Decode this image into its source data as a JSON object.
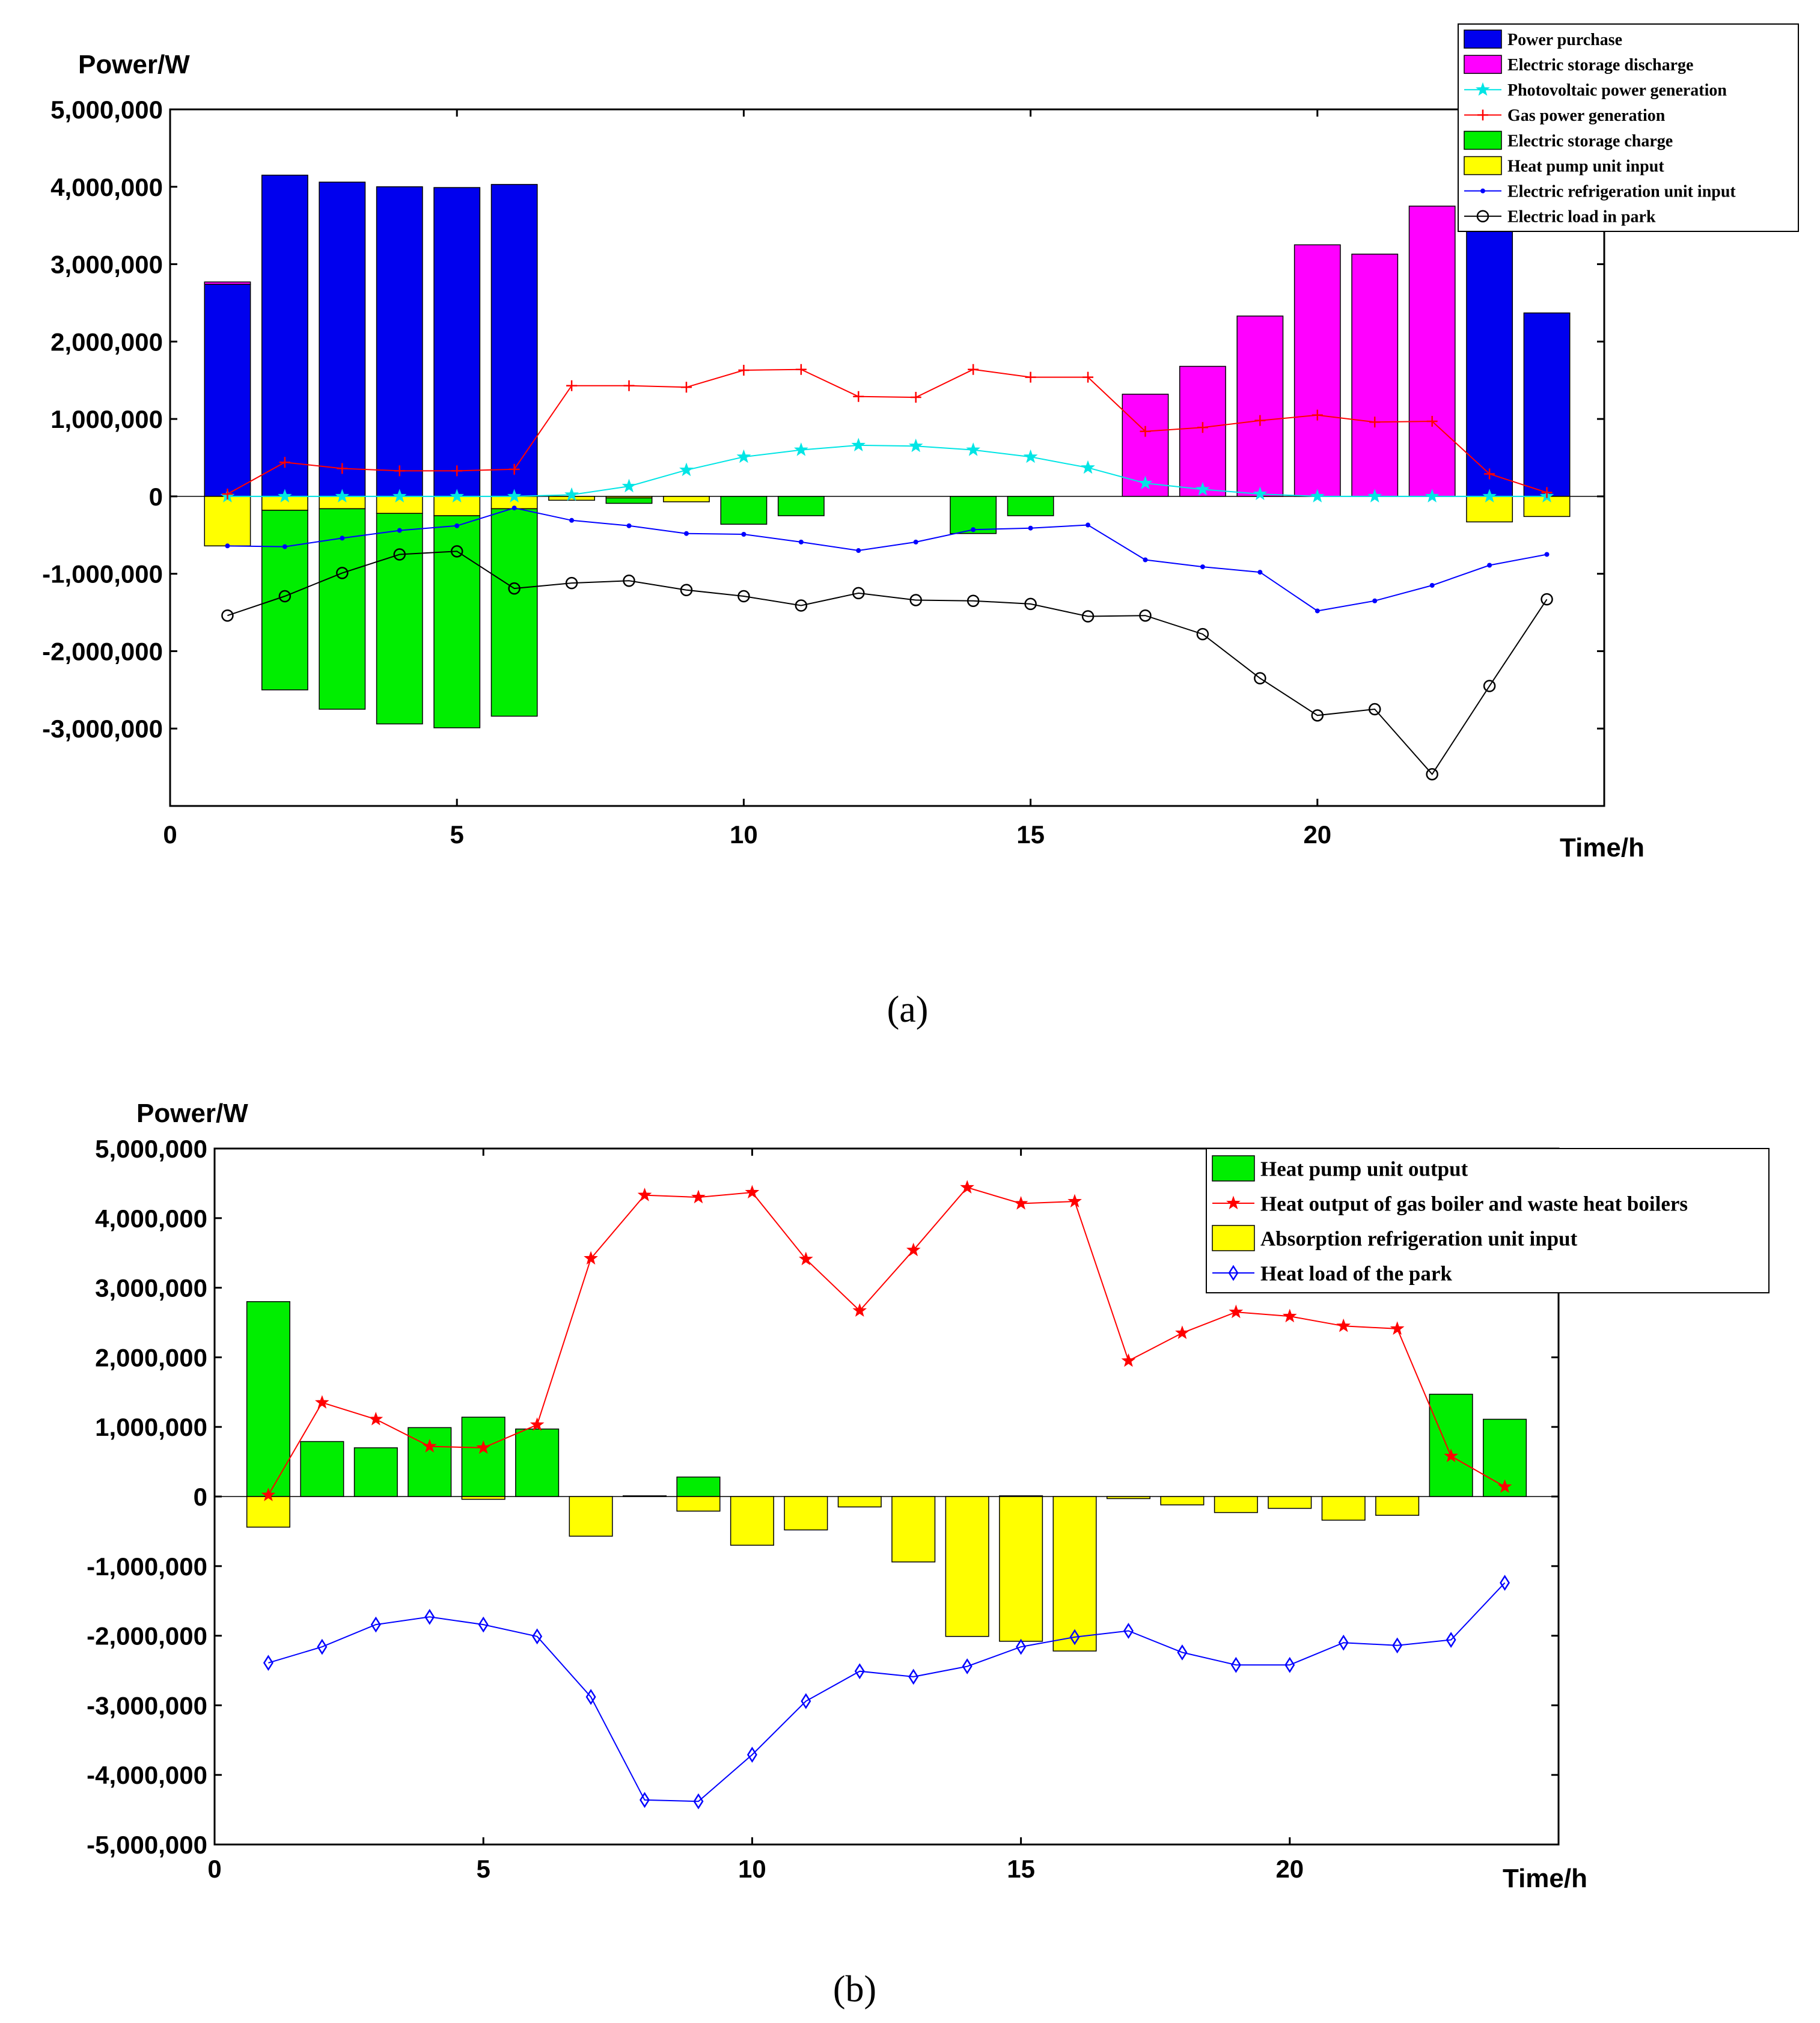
{
  "chart_data": [
    {
      "type": "bar",
      "panel_label": "(a)",
      "ylabel": "Power/W",
      "xlabel": "Time/h",
      "xlim": [
        0,
        25
      ],
      "ylim": [
        -4000000,
        5000000
      ],
      "xticks": [
        0,
        5,
        10,
        15,
        20
      ],
      "yticks": [
        5000000,
        4000000,
        3000000,
        2000000,
        1000000,
        0,
        -1000000,
        -2000000,
        -3000000
      ],
      "ytick_labels": [
        "5,000,000",
        "4,000,000",
        "3,000,000",
        "2,000,000",
        "1,000,000",
        "0",
        "-1,000,000",
        "-2,000,000",
        "-3,000,000"
      ],
      "xtick_labels": [
        "0",
        "5",
        "10",
        "15",
        "20"
      ],
      "legend_position": "top-right",
      "x": [
        1,
        2,
        3,
        4,
        5,
        6,
        7,
        8,
        9,
        10,
        11,
        12,
        13,
        14,
        15,
        16,
        17,
        18,
        19,
        20,
        21,
        22,
        23,
        24
      ],
      "bar_series": [
        {
          "name": "Power purchase",
          "color": "#0000ee",
          "stack": "pos",
          "values": [
            2740000,
            4150000,
            4060000,
            4000000,
            3990000,
            4030000,
            0,
            0,
            0,
            0,
            0,
            0,
            0,
            0,
            0,
            0,
            0,
            0,
            0,
            0,
            0,
            0,
            3700000,
            2370000
          ]
        },
        {
          "name": "Electric storage discharge",
          "color": "#ff00ff",
          "stack": "pos",
          "values": [
            30000,
            0,
            0,
            0,
            0,
            0,
            0,
            0,
            0,
            0,
            0,
            0,
            0,
            0,
            0,
            0,
            1320000,
            1680000,
            2330000,
            3250000,
            3130000,
            3750000,
            0,
            0
          ]
        },
        {
          "name": "Heat pump unit input",
          "color": "#ffff00",
          "stack": "neg",
          "values": [
            -640000,
            -180000,
            -160000,
            -220000,
            -250000,
            -160000,
            -50000,
            -20000,
            -70000,
            0,
            0,
            0,
            0,
            0,
            0,
            0,
            0,
            0,
            0,
            0,
            0,
            0,
            -330000,
            -260000
          ]
        },
        {
          "name": "Electric storage charge",
          "color": "#00ee00",
          "stack": "neg",
          "values": [
            0,
            -2320000,
            -2590000,
            -2720000,
            -2740000,
            -2680000,
            0,
            -70000,
            0,
            -360000,
            -250000,
            0,
            0,
            -480000,
            -250000,
            0,
            0,
            0,
            0,
            0,
            0,
            0,
            0,
            0
          ]
        }
      ],
      "line_series": [
        {
          "name": "Photovoltaic power generation",
          "color": "#00e5e5",
          "marker": "star",
          "values": [
            0,
            0,
            0,
            0,
            0,
            0,
            20000,
            130000,
            340000,
            510000,
            600000,
            660000,
            650000,
            600000,
            510000,
            370000,
            170000,
            90000,
            30000,
            0,
            0,
            0,
            0,
            0
          ]
        },
        {
          "name": "Gas power generation",
          "color": "#ff0000",
          "marker": "plus",
          "values": [
            30000,
            440000,
            360000,
            330000,
            330000,
            350000,
            1430000,
            1430000,
            1410000,
            1630000,
            1640000,
            1290000,
            1280000,
            1640000,
            1540000,
            1540000,
            840000,
            890000,
            980000,
            1050000,
            960000,
            970000,
            290000,
            50000
          ]
        },
        {
          "name": "Electric refrigeration unit input",
          "color": "#0000ff",
          "marker": "dot",
          "values": [
            -640000,
            -650000,
            -540000,
            -440000,
            -380000,
            -150000,
            -310000,
            -380000,
            -480000,
            -490000,
            -590000,
            -700000,
            -590000,
            -430000,
            -410000,
            -370000,
            -820000,
            -910000,
            -980000,
            -1480000,
            -1350000,
            -1150000,
            -890000,
            -750000
          ]
        },
        {
          "name": "Electric load in park",
          "color": "#000000",
          "marker": "circle",
          "values": [
            -1540000,
            -1290000,
            -990000,
            -750000,
            -710000,
            -1190000,
            -1120000,
            -1090000,
            -1210000,
            -1290000,
            -1410000,
            -1250000,
            -1340000,
            -1350000,
            -1390000,
            -1550000,
            -1540000,
            -1780000,
            -2350000,
            -2830000,
            -2750000,
            -3590000,
            -2450000,
            -1330000
          ]
        }
      ],
      "legend_order": [
        "Power purchase",
        "Electric storage discharge",
        "Photovoltaic power generation",
        "Gas power generation",
        "Electric storage charge",
        "Heat pump unit input",
        "Electric refrigeration unit input",
        "Electric load in park"
      ]
    },
    {
      "type": "bar",
      "panel_label": "(b)",
      "ylabel": "Power/W",
      "xlabel": "Time/h",
      "xlim": [
        0,
        25
      ],
      "ylim": [
        -5000000,
        5000000
      ],
      "xticks": [
        0,
        5,
        10,
        15,
        20
      ],
      "xtick_labels": [
        "0",
        "5",
        "10",
        "15",
        "20"
      ],
      "yticks": [
        5000000,
        4000000,
        3000000,
        2000000,
        1000000,
        0,
        -1000000,
        -2000000,
        -3000000,
        -4000000,
        -5000000
      ],
      "ytick_labels": [
        "5,000,000",
        "4,000,000",
        "3,000,000",
        "2,000,000",
        "1,000,000",
        "0",
        "-1,000,000",
        "-2,000,000",
        "-3,000,000",
        "-4,000,000",
        "-5,000,000"
      ],
      "legend_position": "top-right",
      "x": [
        1,
        2,
        3,
        4,
        5,
        6,
        7,
        8,
        9,
        10,
        11,
        12,
        13,
        14,
        15,
        16,
        17,
        18,
        19,
        20,
        21,
        22,
        23,
        24
      ],
      "bar_series": [
        {
          "name": "Heat pump unit output",
          "color": "#00ee00",
          "stack": "pos",
          "values": [
            2800000,
            790000,
            700000,
            990000,
            1140000,
            970000,
            0,
            10000,
            280000,
            0,
            0,
            0,
            0,
            0,
            10000,
            0,
            0,
            0,
            0,
            0,
            0,
            0,
            1470000,
            1110000
          ]
        },
        {
          "name": "Absorption refrigeration unit input",
          "color": "#ffff00",
          "stack": "neg",
          "values": [
            -440000,
            0,
            0,
            0,
            -40000,
            0,
            -570000,
            0,
            -210000,
            -700000,
            -480000,
            -150000,
            -940000,
            -2010000,
            -2080000,
            -2220000,
            -30000,
            -120000,
            -230000,
            -170000,
            -340000,
            -270000,
            0,
            0
          ]
        }
      ],
      "line_series": [
        {
          "name": "Heat output of gas boiler and waste heat boilers",
          "color": "#ff0000",
          "marker": "star",
          "values": [
            20000,
            1350000,
            1110000,
            720000,
            700000,
            1030000,
            3420000,
            4330000,
            4300000,
            4370000,
            3410000,
            2670000,
            3540000,
            4440000,
            4210000,
            4240000,
            1950000,
            2350000,
            2650000,
            2590000,
            2450000,
            2410000,
            580000,
            140000
          ]
        },
        {
          "name": "Heat load of the park",
          "color": "#0000ff",
          "marker": "diamond",
          "values": [
            -2390000,
            -2160000,
            -1840000,
            -1730000,
            -1840000,
            -2010000,
            -2880000,
            -4360000,
            -4380000,
            -3710000,
            -2940000,
            -2510000,
            -2590000,
            -2440000,
            -2160000,
            -2020000,
            -1930000,
            -2240000,
            -2420000,
            -2420000,
            -2100000,
            -2140000,
            -2060000,
            -1240000
          ]
        }
      ],
      "legend_order": [
        "Heat pump unit output",
        "Heat output of gas boiler and waste heat boilers",
        "Absorption refrigeration unit input",
        "Heat load of the park"
      ]
    }
  ]
}
